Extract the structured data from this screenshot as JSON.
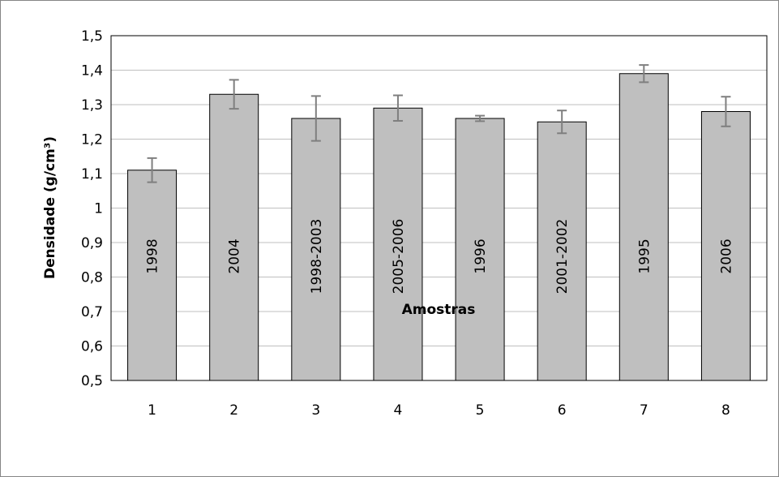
{
  "chart_data": {
    "type": "bar",
    "categories": [
      "1",
      "2",
      "3",
      "4",
      "5",
      "6",
      "7",
      "8"
    ],
    "values": [
      1.11,
      1.33,
      1.26,
      1.29,
      1.26,
      1.25,
      1.39,
      1.28
    ],
    "errors": [
      0.035,
      0.042,
      0.065,
      0.037,
      0.008,
      0.033,
      0.025,
      0.043
    ],
    "bar_labels": [
      "1998",
      "2004",
      "1998-2003",
      "2005-2006",
      "1996",
      "2001-2002",
      "1995",
      "2006"
    ],
    "yticks": [
      "0,5",
      "0,6",
      "0,7",
      "0,8",
      "0,9",
      "1",
      "1,1",
      "1,2",
      "1,3",
      "1,4",
      "1,5"
    ],
    "xlabel": "Amostras",
    "ylabel": "Densidade (g/cm³)",
    "ylim": [
      0.5,
      1.5
    ],
    "grid": true,
    "colors": {
      "bar_fill": "#bfbfbf",
      "bar_stroke": "#000000",
      "grid": "#bfbfbf",
      "error_bar": "#7f7f7f"
    }
  }
}
